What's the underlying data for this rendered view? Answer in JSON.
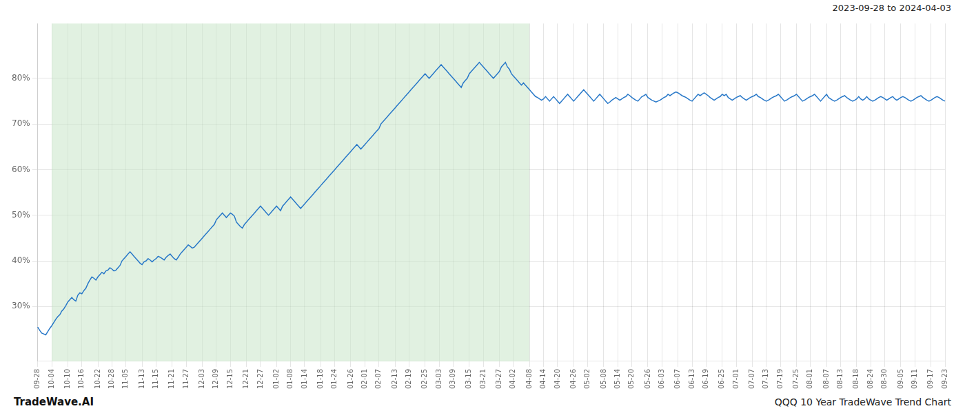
{
  "chart_data": {
    "type": "line",
    "title": "QQQ 10 Year TradeWave Trend Chart",
    "subtitle": "2023-09-28 to 2024-04-03",
    "annotations": [
      "TradeWave.AI"
    ],
    "color": "#2878c8",
    "grid": true,
    "shaded_range": {
      "start": "10-04",
      "end": "04-08",
      "color": "#c8e6c9"
    },
    "ylim": [
      18,
      92
    ],
    "yticks": [
      {
        "value": 30,
        "label": "30%"
      },
      {
        "value": 40,
        "label": "40%"
      },
      {
        "value": 50,
        "label": "50%"
      },
      {
        "value": 60,
        "label": "60%"
      },
      {
        "value": 70,
        "label": "70%"
      },
      {
        "value": 80,
        "label": "80%"
      }
    ],
    "categories": [
      "09-28",
      null,
      null,
      null,
      null,
      null,
      null,
      "10-04",
      null,
      null,
      null,
      null,
      null,
      null,
      null,
      "10-10",
      null,
      null,
      null,
      null,
      null,
      null,
      "10-16",
      null,
      null,
      null,
      null,
      null,
      null,
      null,
      "10-22",
      null,
      null,
      null,
      null,
      null,
      null,
      "10-28",
      null,
      null,
      null,
      null,
      null,
      null,
      "11-05",
      null,
      null,
      null,
      null,
      null,
      null,
      null,
      "11-13",
      null,
      null,
      null,
      null,
      null,
      null,
      "11-15",
      null,
      null,
      null,
      null,
      null,
      null,
      null,
      "11-21",
      null,
      null,
      null,
      null,
      null,
      null,
      "11-27",
      null,
      null,
      null,
      null,
      null,
      null,
      null,
      "12-03",
      null,
      null,
      null,
      null,
      null,
      null,
      "12-09",
      null,
      null,
      null,
      null,
      null,
      null,
      "12-15",
      null,
      null,
      null,
      null,
      null,
      null,
      null,
      "12-21",
      null,
      null,
      null,
      null,
      null,
      null,
      "12-27",
      null,
      null,
      null,
      null,
      null,
      null,
      null,
      "01-02",
      null,
      null,
      null,
      null,
      null,
      null,
      "01-08",
      null,
      null,
      null,
      null,
      null,
      null,
      "01-14",
      null,
      null,
      null,
      null,
      null,
      null,
      null,
      "01-18",
      null,
      null,
      null,
      null,
      null,
      null,
      "01-24",
      null,
      null,
      null,
      null,
      null,
      null,
      null,
      "01-26",
      null,
      null,
      null,
      null,
      null,
      null,
      "02-01",
      null,
      null,
      null,
      null,
      null,
      null,
      "02-07",
      null,
      null,
      null,
      null,
      null,
      null,
      null,
      "02-13",
      null,
      null,
      null,
      null,
      null,
      null,
      "02-19",
      null,
      null,
      null,
      null,
      null,
      null,
      null,
      "02-25",
      null,
      null,
      null,
      null,
      null,
      null,
      "03-03",
      null,
      null,
      null,
      null,
      null,
      null,
      "03-09",
      null,
      null,
      null,
      null,
      null,
      null,
      null,
      "03-15",
      null,
      null,
      null,
      null,
      null,
      null,
      "03-21",
      null,
      null,
      null,
      null,
      null,
      null,
      null,
      "03-27",
      null,
      null,
      null,
      null,
      null,
      null,
      "04-02",
      null,
      null,
      null,
      null,
      null,
      null,
      null,
      "04-08",
      null,
      null,
      null,
      null,
      null,
      null,
      "04-14",
      null,
      null,
      null,
      null,
      null,
      null,
      "04-20",
      null,
      null,
      null,
      null,
      null,
      null,
      null,
      "04-26",
      null,
      null,
      null,
      null,
      null,
      null,
      "05-02",
      null,
      null,
      null,
      null,
      null,
      null,
      null,
      "05-08",
      null,
      null,
      null,
      null,
      null,
      null,
      "05-14",
      null,
      null,
      null,
      null,
      null,
      null,
      "05-20",
      null,
      null,
      null,
      null,
      null,
      null,
      null,
      "05-26",
      null,
      null,
      null,
      null,
      null,
      null,
      "06-03",
      null,
      null,
      null,
      null,
      null,
      null,
      null,
      "06-07",
      null,
      null,
      null,
      null,
      null,
      null,
      "06-13",
      null,
      null,
      null,
      null,
      null,
      null,
      "06-19",
      null,
      null,
      null,
      null,
      null,
      null,
      null,
      "06-25",
      null,
      null,
      null,
      null,
      null,
      null,
      "07-01",
      null,
      null,
      null,
      null,
      null,
      null,
      null,
      "07-07",
      null,
      null,
      null,
      null,
      null,
      null,
      "07-13",
      null,
      null,
      null,
      null,
      null,
      null,
      "07-19",
      null,
      null,
      null,
      null,
      null,
      null,
      null,
      "07-25",
      null,
      null,
      null,
      null,
      null,
      null,
      "08-01",
      null,
      null,
      null,
      null,
      null,
      null,
      null,
      "08-07",
      null,
      null,
      null,
      null,
      null,
      null,
      "08-13",
      null,
      null,
      null,
      null,
      null,
      null,
      null,
      "08-18",
      null,
      null,
      null,
      null,
      null,
      null,
      "08-24",
      null,
      null,
      null,
      null,
      null,
      null,
      "08-30",
      null,
      null,
      null,
      null,
      null,
      null,
      null,
      "09-05",
      null,
      null,
      null,
      null,
      null,
      null,
      "09-11",
      null,
      null,
      null,
      null,
      null,
      null,
      null,
      "09-17",
      null,
      null,
      null,
      null,
      null,
      null,
      "09-23"
    ],
    "values": [
      25.5,
      24.8,
      24.2,
      24.0,
      23.8,
      24.5,
      25.2,
      25.8,
      26.5,
      27.2,
      27.8,
      28.2,
      29.0,
      29.5,
      30.2,
      31.0,
      31.5,
      32.0,
      31.5,
      31.2,
      32.5,
      33.0,
      32.8,
      33.5,
      34.0,
      35.0,
      35.8,
      36.5,
      36.2,
      35.8,
      36.5,
      37.0,
      37.5,
      37.2,
      37.8,
      38.0,
      38.5,
      38.2,
      37.8,
      38.0,
      38.5,
      39.0,
      40.0,
      40.5,
      41.0,
      41.5,
      42.0,
      41.5,
      41.0,
      40.5,
      40.0,
      39.5,
      39.2,
      39.8,
      40.0,
      40.5,
      40.2,
      39.8,
      40.2,
      40.5,
      41.0,
      40.8,
      40.5,
      40.2,
      40.8,
      41.2,
      41.5,
      41.0,
      40.5,
      40.2,
      40.8,
      41.5,
      42.0,
      42.5,
      43.0,
      43.5,
      43.2,
      42.8,
      43.0,
      43.5,
      44.0,
      44.5,
      45.0,
      45.5,
      46.0,
      46.5,
      47.0,
      47.5,
      48.0,
      49.0,
      49.5,
      50.0,
      50.5,
      50.0,
      49.5,
      50.0,
      50.5,
      50.2,
      49.8,
      48.5,
      48.0,
      47.5,
      47.2,
      48.0,
      48.5,
      49.0,
      49.5,
      50.0,
      50.5,
      51.0,
      51.5,
      52.0,
      51.5,
      51.0,
      50.5,
      50.0,
      50.5,
      51.0,
      51.5,
      52.0,
      51.5,
      51.0,
      52.0,
      52.5,
      53.0,
      53.5,
      54.0,
      53.5,
      53.0,
      52.5,
      52.0,
      51.5,
      52.0,
      52.5,
      53.0,
      53.5,
      54.0,
      54.5,
      55.0,
      55.5,
      56.0,
      56.5,
      57.0,
      57.5,
      58.0,
      58.5,
      59.0,
      59.5,
      60.0,
      60.5,
      61.0,
      61.5,
      62.0,
      62.5,
      63.0,
      63.5,
      64.0,
      64.5,
      65.0,
      65.5,
      65.0,
      64.5,
      65.0,
      65.5,
      66.0,
      66.5,
      67.0,
      67.5,
      68.0,
      68.5,
      69.0,
      70.0,
      70.5,
      71.0,
      71.5,
      72.0,
      72.5,
      73.0,
      73.5,
      74.0,
      74.5,
      75.0,
      75.5,
      76.0,
      76.5,
      77.0,
      77.5,
      78.0,
      78.5,
      79.0,
      79.5,
      80.0,
      80.5,
      81.0,
      80.5,
      80.0,
      80.5,
      81.0,
      81.5,
      82.0,
      82.5,
      83.0,
      82.5,
      82.0,
      81.5,
      81.0,
      80.5,
      80.0,
      79.5,
      79.0,
      78.5,
      78.0,
      79.0,
      79.5,
      80.0,
      81.0,
      81.5,
      82.0,
      82.5,
      83.0,
      83.5,
      83.0,
      82.5,
      82.0,
      81.5,
      81.0,
      80.5,
      80.0,
      80.5,
      81.0,
      81.5,
      82.5,
      83.0,
      83.5,
      82.5,
      82.0,
      81.0,
      80.5,
      80.0,
      79.5,
      79.0,
      78.5,
      79.0,
      78.5,
      78.0,
      77.5,
      77.0,
      76.5,
      76.0,
      75.8,
      75.5,
      75.2,
      75.5,
      76.0,
      75.5,
      75.0,
      75.5,
      76.0,
      75.5,
      75.0,
      74.5,
      75.0,
      75.5,
      76.0,
      76.5,
      76.0,
      75.5,
      75.0,
      75.5,
      76.0,
      76.5,
      77.0,
      77.5,
      77.0,
      76.5,
      76.0,
      75.5,
      75.0,
      75.5,
      76.0,
      76.5,
      76.0,
      75.5,
      75.0,
      74.5,
      74.8,
      75.2,
      75.5,
      75.8,
      75.5,
      75.2,
      75.5,
      75.8,
      76.0,
      76.5,
      76.2,
      75.8,
      75.5,
      75.2,
      75.0,
      75.5,
      76.0,
      76.2,
      76.5,
      75.8,
      75.5,
      75.2,
      75.0,
      74.8,
      75.0,
      75.2,
      75.5,
      75.8,
      76.0,
      76.5,
      76.2,
      76.5,
      76.8,
      77.0,
      76.8,
      76.5,
      76.2,
      76.0,
      75.8,
      75.5,
      75.2,
      75.0,
      75.5,
      76.0,
      76.5,
      76.2,
      76.5,
      76.8,
      76.5,
      76.2,
      75.8,
      75.5,
      75.2,
      75.5,
      75.8,
      76.0,
      76.5,
      76.2,
      76.5,
      75.8,
      75.5,
      75.2,
      75.5,
      75.8,
      76.0,
      76.2,
      75.8,
      75.5,
      75.2,
      75.5,
      75.8,
      76.0,
      76.2,
      76.5,
      76.0,
      75.8,
      75.5,
      75.2,
      75.0,
      75.2,
      75.5,
      75.8,
      76.0,
      76.2,
      76.5,
      76.0,
      75.5,
      75.0,
      75.2,
      75.5,
      75.8,
      76.0,
      76.2,
      76.5,
      76.0,
      75.5,
      75.0,
      75.2,
      75.5,
      75.8,
      76.0,
      76.2,
      76.5,
      76.0,
      75.5,
      75.0,
      75.5,
      76.0,
      76.5,
      75.8,
      75.5,
      75.2,
      75.0,
      75.2,
      75.5,
      75.8,
      76.0,
      76.2,
      75.8,
      75.5,
      75.2,
      75.0,
      75.2,
      75.5,
      76.0,
      75.5,
      75.2,
      75.5,
      76.0,
      75.5,
      75.2,
      75.0,
      75.2,
      75.5,
      75.8,
      76.0,
      75.8,
      75.5,
      75.2,
      75.5,
      75.8,
      76.0,
      75.5,
      75.2,
      75.5,
      75.8,
      76.0,
      75.8,
      75.5,
      75.2,
      75.0,
      75.2,
      75.5,
      75.8,
      76.0,
      76.2,
      75.8,
      75.5,
      75.2,
      75.0,
      75.2,
      75.5,
      75.8,
      76.0,
      75.8,
      75.5,
      75.2,
      75.0
    ]
  }
}
